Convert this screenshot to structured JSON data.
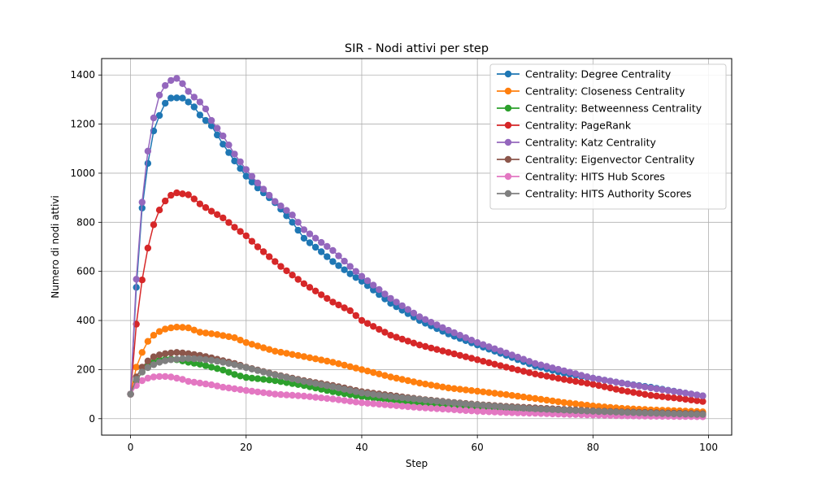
{
  "chart_data": {
    "type": "line",
    "title": "SIR - Nodi attivi per step",
    "xlabel": "Step",
    "ylabel": "Numero di nodi attivi",
    "xlim": [
      -5,
      104
    ],
    "ylim": [
      -67,
      1467
    ],
    "x_ticks": [
      0,
      20,
      40,
      60,
      80,
      100
    ],
    "y_ticks": [
      0,
      200,
      400,
      600,
      800,
      1000,
      1200,
      1400
    ],
    "grid": true,
    "legend_position": "top-right",
    "x_points": 100,
    "series": [
      {
        "name": "Centrality: Degree Centrality",
        "color": "#1f77b4",
        "anchors": [
          [
            0,
            100
          ],
          [
            1,
            535
          ],
          [
            2,
            858
          ],
          [
            3,
            1040
          ],
          [
            4,
            1172
          ],
          [
            5,
            1235
          ],
          [
            6,
            1285
          ],
          [
            7,
            1306
          ],
          [
            8,
            1307
          ],
          [
            9,
            1306
          ],
          [
            10,
            1290
          ],
          [
            11,
            1270
          ],
          [
            12,
            1237
          ],
          [
            14,
            1193
          ],
          [
            16,
            1118
          ],
          [
            18,
            1050
          ],
          [
            20,
            988
          ],
          [
            22,
            940
          ],
          [
            25,
            880
          ],
          [
            28,
            800
          ],
          [
            30,
            735
          ],
          [
            33,
            680
          ],
          [
            35,
            640
          ],
          [
            38,
            590
          ],
          [
            40,
            560
          ],
          [
            45,
            470
          ],
          [
            50,
            400
          ],
          [
            55,
            345
          ],
          [
            60,
            300
          ],
          [
            65,
            258
          ],
          [
            70,
            215
          ],
          [
            75,
            185
          ],
          [
            80,
            165
          ],
          [
            85,
            145
          ],
          [
            90,
            128
          ],
          [
            95,
            108
          ],
          [
            99,
            93
          ]
        ]
      },
      {
        "name": "Centrality: Closeness Centrality",
        "color": "#ff7f0e",
        "anchors": [
          [
            0,
            100
          ],
          [
            1,
            210
          ],
          [
            2,
            270
          ],
          [
            3,
            315
          ],
          [
            4,
            340
          ],
          [
            5,
            355
          ],
          [
            6,
            365
          ],
          [
            7,
            370
          ],
          [
            8,
            373
          ],
          [
            9,
            372
          ],
          [
            10,
            370
          ],
          [
            12,
            352
          ],
          [
            15,
            343
          ],
          [
            18,
            330
          ],
          [
            20,
            310
          ],
          [
            25,
            275
          ],
          [
            30,
            253
          ],
          [
            35,
            230
          ],
          [
            40,
            200
          ],
          [
            45,
            170
          ],
          [
            50,
            145
          ],
          [
            55,
            125
          ],
          [
            60,
            112
          ],
          [
            65,
            98
          ],
          [
            70,
            82
          ],
          [
            75,
            66
          ],
          [
            80,
            52
          ],
          [
            85,
            42
          ],
          [
            90,
            36
          ],
          [
            95,
            32
          ],
          [
            99,
            28
          ]
        ]
      },
      {
        "name": "Centrality: Betweenness Centrality",
        "color": "#2ca02c",
        "anchors": [
          [
            0,
            100
          ],
          [
            1,
            155
          ],
          [
            2,
            190
          ],
          [
            3,
            215
          ],
          [
            4,
            230
          ],
          [
            5,
            238
          ],
          [
            6,
            242
          ],
          [
            7,
            243
          ],
          [
            8,
            240
          ],
          [
            9,
            235
          ],
          [
            10,
            230
          ],
          [
            12,
            222
          ],
          [
            14,
            210
          ],
          [
            16,
            198
          ],
          [
            18,
            180
          ],
          [
            20,
            168
          ],
          [
            25,
            155
          ],
          [
            30,
            135
          ],
          [
            35,
            110
          ],
          [
            40,
            90
          ],
          [
            45,
            75
          ],
          [
            50,
            62
          ],
          [
            55,
            50
          ],
          [
            60,
            42
          ],
          [
            65,
            36
          ],
          [
            70,
            30
          ],
          [
            75,
            27
          ],
          [
            80,
            24
          ],
          [
            85,
            20
          ],
          [
            90,
            18
          ],
          [
            95,
            16
          ],
          [
            99,
            15
          ]
        ]
      },
      {
        "name": "Centrality: PageRank",
        "color": "#d62728",
        "anchors": [
          [
            0,
            100
          ],
          [
            1,
            385
          ],
          [
            2,
            565
          ],
          [
            3,
            695
          ],
          [
            4,
            790
          ],
          [
            5,
            850
          ],
          [
            6,
            887
          ],
          [
            7,
            910
          ],
          [
            8,
            920
          ],
          [
            9,
            916
          ],
          [
            10,
            912
          ],
          [
            11,
            895
          ],
          [
            12,
            875
          ],
          [
            14,
            845
          ],
          [
            16,
            818
          ],
          [
            18,
            780
          ],
          [
            20,
            745
          ],
          [
            22,
            700
          ],
          [
            24,
            660
          ],
          [
            26,
            620
          ],
          [
            28,
            585
          ],
          [
            30,
            550
          ],
          [
            32,
            520
          ],
          [
            35,
            475
          ],
          [
            38,
            440
          ],
          [
            40,
            400
          ],
          [
            45,
            340
          ],
          [
            50,
            300
          ],
          [
            55,
            270
          ],
          [
            60,
            240
          ],
          [
            65,
            210
          ],
          [
            70,
            182
          ],
          [
            75,
            160
          ],
          [
            80,
            140
          ],
          [
            85,
            115
          ],
          [
            90,
            95
          ],
          [
            95,
            82
          ],
          [
            99,
            70
          ]
        ]
      },
      {
        "name": "Centrality: Katz Centrality",
        "color": "#9467bd",
        "anchors": [
          [
            0,
            100
          ],
          [
            1,
            568
          ],
          [
            2,
            882
          ],
          [
            3,
            1090
          ],
          [
            4,
            1225
          ],
          [
            5,
            1318
          ],
          [
            6,
            1357
          ],
          [
            7,
            1378
          ],
          [
            8,
            1386
          ],
          [
            9,
            1365
          ],
          [
            10,
            1333
          ],
          [
            11,
            1310
          ],
          [
            12,
            1290
          ],
          [
            13,
            1262
          ],
          [
            14,
            1215
          ],
          [
            16,
            1152
          ],
          [
            18,
            1078
          ],
          [
            20,
            1015
          ],
          [
            22,
            960
          ],
          [
            25,
            885
          ],
          [
            28,
            830
          ],
          [
            30,
            770
          ],
          [
            33,
            718
          ],
          [
            35,
            685
          ],
          [
            38,
            620
          ],
          [
            40,
            580
          ],
          [
            45,
            490
          ],
          [
            50,
            415
          ],
          [
            55,
            360
          ],
          [
            60,
            310
          ],
          [
            65,
            268
          ],
          [
            70,
            225
          ],
          [
            75,
            195
          ],
          [
            80,
            165
          ],
          [
            85,
            145
          ],
          [
            90,
            125
          ],
          [
            95,
            108
          ],
          [
            99,
            93
          ]
        ]
      },
      {
        "name": "Centrality: Eigenvector Centrality",
        "color": "#8c564b",
        "anchors": [
          [
            0,
            100
          ],
          [
            1,
            170
          ],
          [
            2,
            210
          ],
          [
            3,
            235
          ],
          [
            4,
            252
          ],
          [
            5,
            260
          ],
          [
            6,
            265
          ],
          [
            7,
            268
          ],
          [
            8,
            270
          ],
          [
            9,
            268
          ],
          [
            10,
            265
          ],
          [
            12,
            258
          ],
          [
            14,
            248
          ],
          [
            16,
            236
          ],
          [
            18,
            225
          ],
          [
            20,
            210
          ],
          [
            25,
            180
          ],
          [
            30,
            155
          ],
          [
            35,
            135
          ],
          [
            40,
            110
          ],
          [
            45,
            95
          ],
          [
            50,
            80
          ],
          [
            55,
            68
          ],
          [
            60,
            58
          ],
          [
            65,
            50
          ],
          [
            70,
            44
          ],
          [
            75,
            38
          ],
          [
            80,
            32
          ],
          [
            85,
            28
          ],
          [
            90,
            25
          ],
          [
            95,
            22
          ],
          [
            99,
            20
          ]
        ]
      },
      {
        "name": "Centrality: HITS Hub Scores",
        "color": "#e377c2",
        "anchors": [
          [
            0,
            100
          ],
          [
            1,
            135
          ],
          [
            2,
            155
          ],
          [
            3,
            165
          ],
          [
            4,
            170
          ],
          [
            5,
            172
          ],
          [
            6,
            172
          ],
          [
            7,
            170
          ],
          [
            8,
            165
          ],
          [
            9,
            160
          ],
          [
            10,
            152
          ],
          [
            12,
            145
          ],
          [
            14,
            138
          ],
          [
            16,
            128
          ],
          [
            18,
            122
          ],
          [
            20,
            115
          ],
          [
            25,
            100
          ],
          [
            30,
            92
          ],
          [
            35,
            80
          ],
          [
            40,
            65
          ],
          [
            45,
            55
          ],
          [
            50,
            45
          ],
          [
            55,
            38
          ],
          [
            60,
            30
          ],
          [
            65,
            25
          ],
          [
            70,
            22
          ],
          [
            75,
            18
          ],
          [
            80,
            15
          ],
          [
            85,
            12
          ],
          [
            90,
            10
          ],
          [
            95,
            9
          ],
          [
            99,
            8
          ]
        ]
      },
      {
        "name": "Centrality: HITS Authority Scores",
        "color": "#7f7f7f",
        "anchors": [
          [
            0,
            100
          ],
          [
            1,
            160
          ],
          [
            2,
            190
          ],
          [
            3,
            208
          ],
          [
            4,
            220
          ],
          [
            5,
            230
          ],
          [
            6,
            236
          ],
          [
            7,
            240
          ],
          [
            8,
            242
          ],
          [
            9,
            244
          ],
          [
            10,
            245
          ],
          [
            12,
            243
          ],
          [
            14,
            238
          ],
          [
            16,
            230
          ],
          [
            18,
            220
          ],
          [
            20,
            208
          ],
          [
            25,
            178
          ],
          [
            30,
            152
          ],
          [
            35,
            130
          ],
          [
            40,
            105
          ],
          [
            45,
            90
          ],
          [
            50,
            78
          ],
          [
            55,
            66
          ],
          [
            60,
            56
          ],
          [
            65,
            47
          ],
          [
            70,
            40
          ],
          [
            75,
            35
          ],
          [
            80,
            30
          ],
          [
            85,
            26
          ],
          [
            90,
            22
          ],
          [
            95,
            19
          ],
          [
            99,
            17
          ]
        ]
      }
    ]
  }
}
